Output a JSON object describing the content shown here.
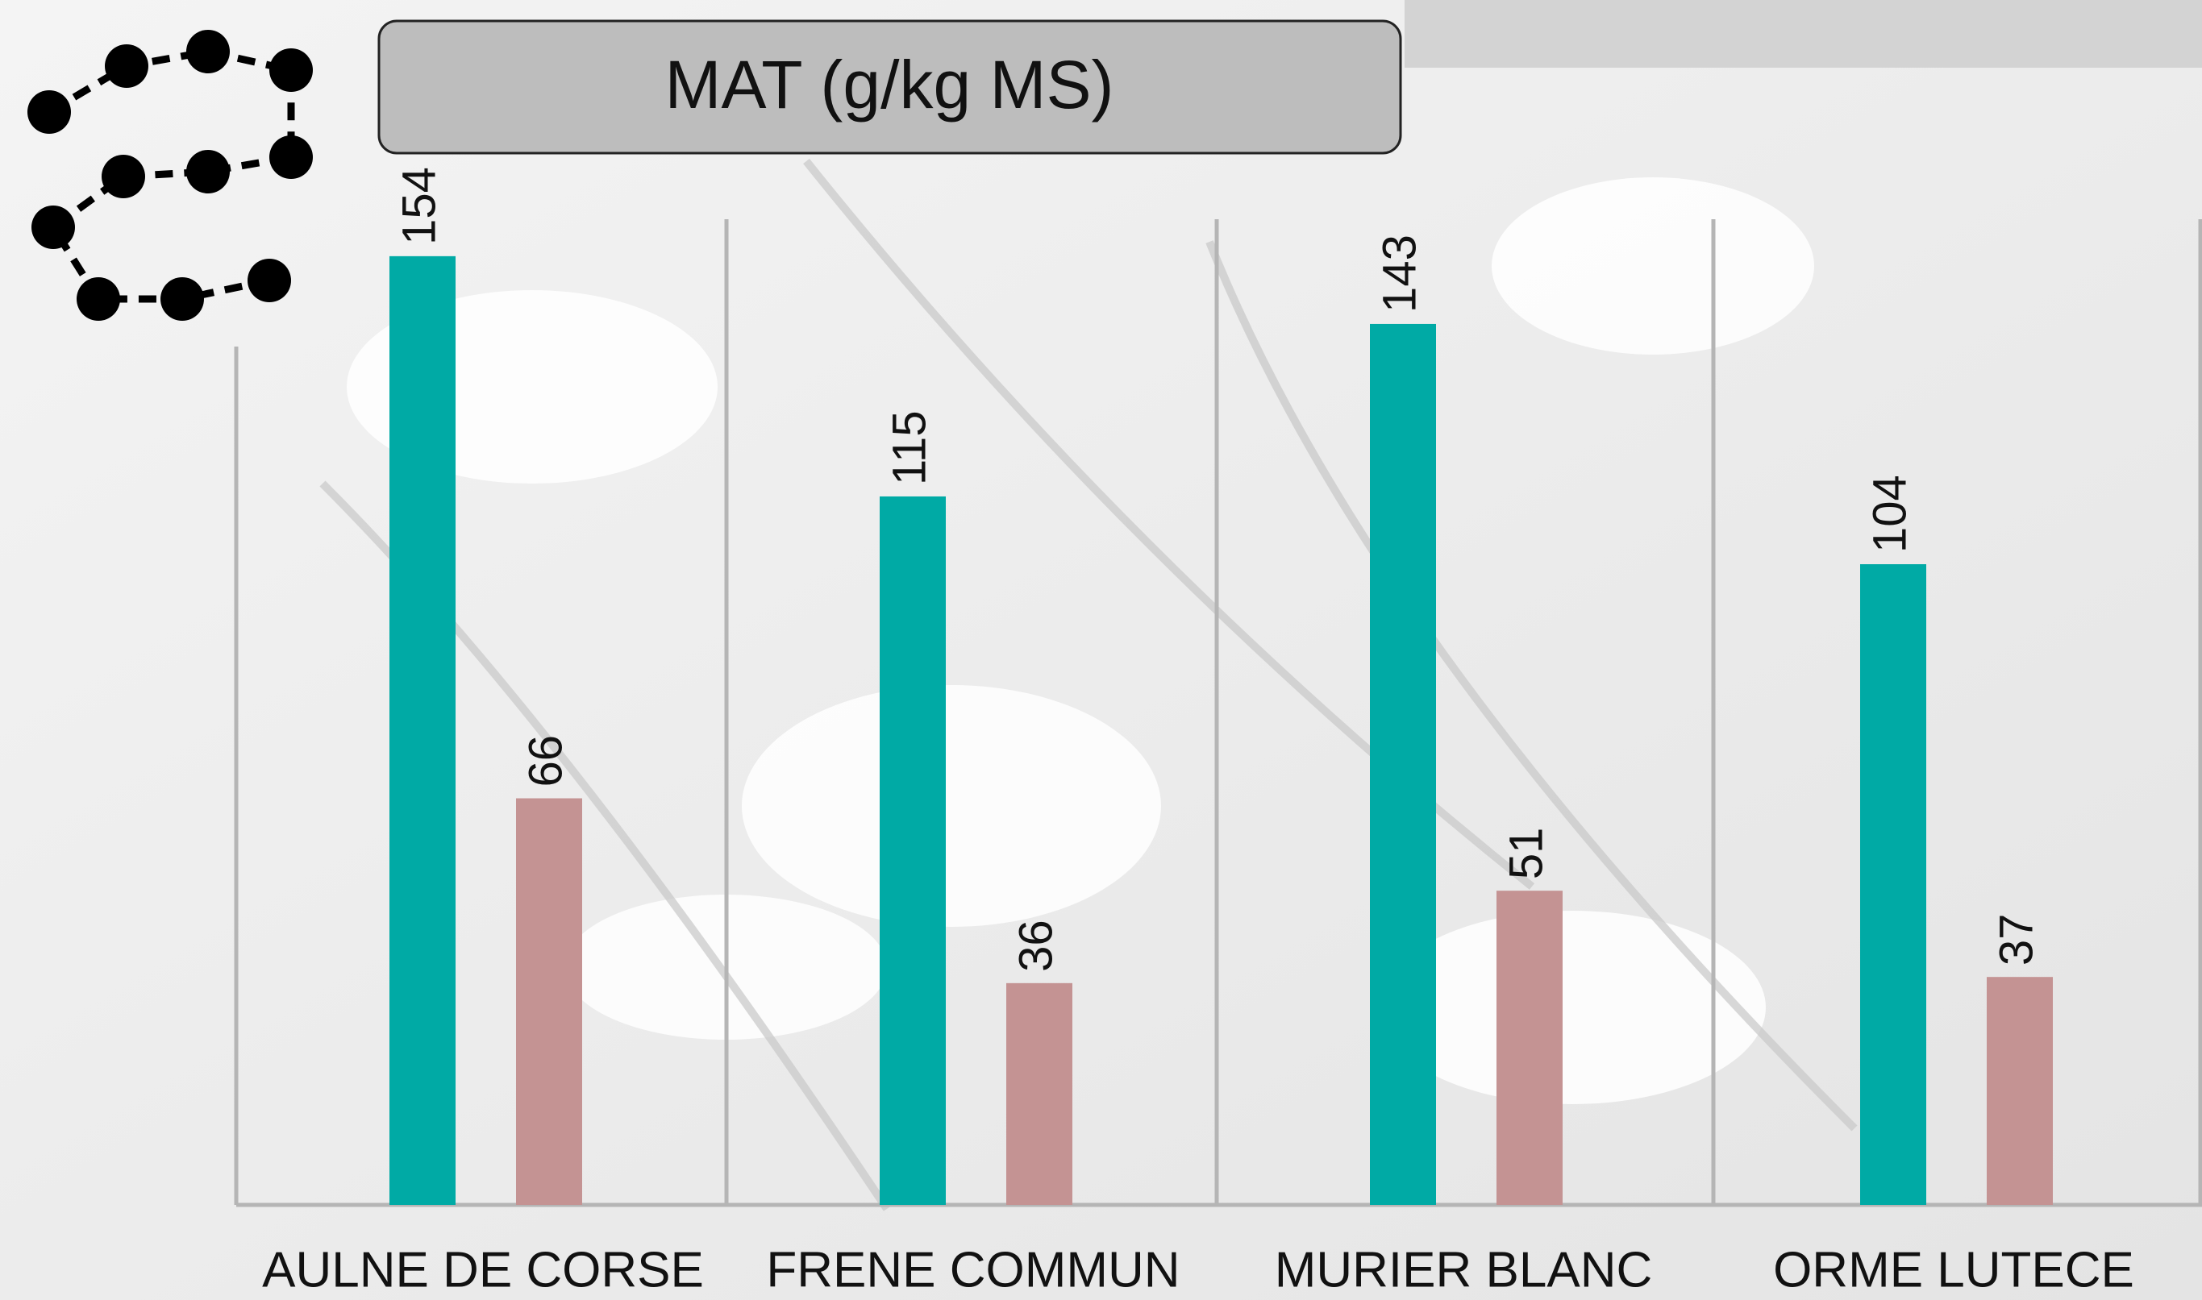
{
  "chart_data": {
    "type": "bar",
    "title": "MAT (g/kg MS)",
    "categories": [
      "AULNE DE CORSE",
      "FRENE COMMUN",
      "MURIER BLANC",
      "ORME LUTECE"
    ],
    "series": [
      {
        "color": "#00aaa5",
        "values": [
          154,
          115,
          143,
          104
        ]
      },
      {
        "color": "#c49393",
        "values": [
          66,
          36,
          51,
          37
        ]
      }
    ],
    "ylim": [
      0,
      160
    ]
  }
}
